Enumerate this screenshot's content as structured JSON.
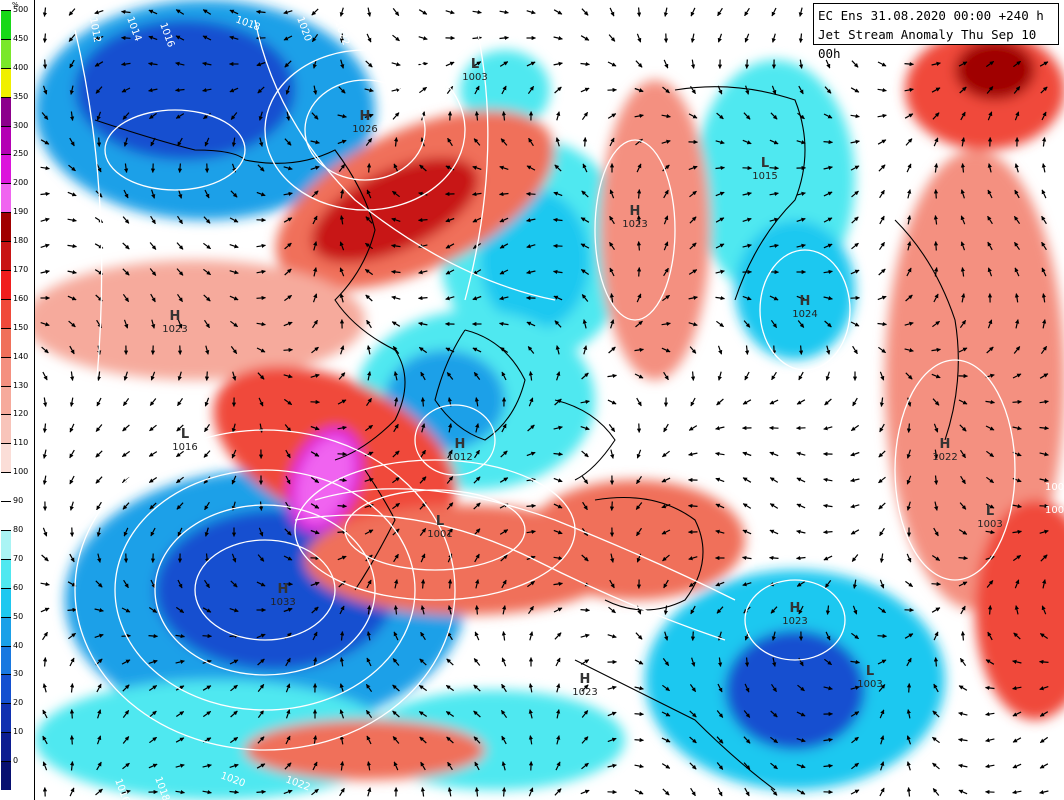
{
  "title": {
    "line1": "EC Ens 31.08.2020 00:00 +240 h",
    "line2": "Jet Stream Anomaly Thu Sep 10 00h"
  },
  "legend": {
    "unit": "%",
    "steps": [
      {
        "label": "500",
        "color": "#18d818"
      },
      {
        "label": "450",
        "color": "#7ae82a"
      },
      {
        "label": "400",
        "color": "#f0f000"
      },
      {
        "label": "350",
        "color": "#8c008c"
      },
      {
        "label": "300",
        "color": "#b400b4"
      },
      {
        "label": "250",
        "color": "#dc14dc"
      },
      {
        "label": "200",
        "color": "#f064f0"
      },
      {
        "label": "190",
        "color": "#a00000"
      },
      {
        "label": "180",
        "color": "#c81414"
      },
      {
        "label": "170",
        "color": "#f01e1e"
      },
      {
        "label": "160",
        "color": "#f04a3a"
      },
      {
        "label": "150",
        "color": "#f0705a"
      },
      {
        "label": "140",
        "color": "#f49080"
      },
      {
        "label": "130",
        "color": "#f6aa9c"
      },
      {
        "label": "120",
        "color": "#f8c4ba"
      },
      {
        "label": "110",
        "color": "#fbded8"
      },
      {
        "label": "100",
        "color": "#ffffff"
      },
      {
        "label": "90",
        "color": "#ffffff"
      },
      {
        "label": "80",
        "color": "#aaf4f4"
      },
      {
        "label": "70",
        "color": "#50e8f0"
      },
      {
        "label": "60",
        "color": "#1ec8f0"
      },
      {
        "label": "50",
        "color": "#1aa0e8"
      },
      {
        "label": "40",
        "color": "#1878e0"
      },
      {
        "label": "30",
        "color": "#1450d0"
      },
      {
        "label": "20",
        "color": "#1030b0"
      },
      {
        "label": "10",
        "color": "#0c1c90"
      },
      {
        "label": "0",
        "color": "#081070"
      }
    ]
  },
  "pressure_centers": [
    {
      "type": "H",
      "value": "1026"
    },
    {
      "type": "H",
      "value": "1023"
    },
    {
      "type": "H",
      "value": "1023"
    },
    {
      "type": "H",
      "value": "1024"
    },
    {
      "type": "H",
      "value": "1012"
    },
    {
      "type": "H",
      "value": "1033"
    },
    {
      "type": "H",
      "value": "1022"
    },
    {
      "type": "H",
      "value": "1023"
    },
    {
      "type": "H",
      "value": "1023"
    },
    {
      "type": "L",
      "value": "1003"
    },
    {
      "type": "L",
      "value": "1015"
    },
    {
      "type": "L",
      "value": "1016"
    },
    {
      "type": "L",
      "value": "1001"
    },
    {
      "type": "L",
      "value": "1003"
    },
    {
      "type": "L",
      "value": "1003"
    }
  ],
  "isobar_labels": [
    "1010",
    "1012",
    "1014",
    "1016",
    "1018",
    "1020",
    "1022",
    "1016",
    "1012",
    "1008",
    "1010",
    "1014",
    "1016",
    "1018",
    "1020",
    "1022",
    "1006",
    "1006",
    "1008"
  ]
}
